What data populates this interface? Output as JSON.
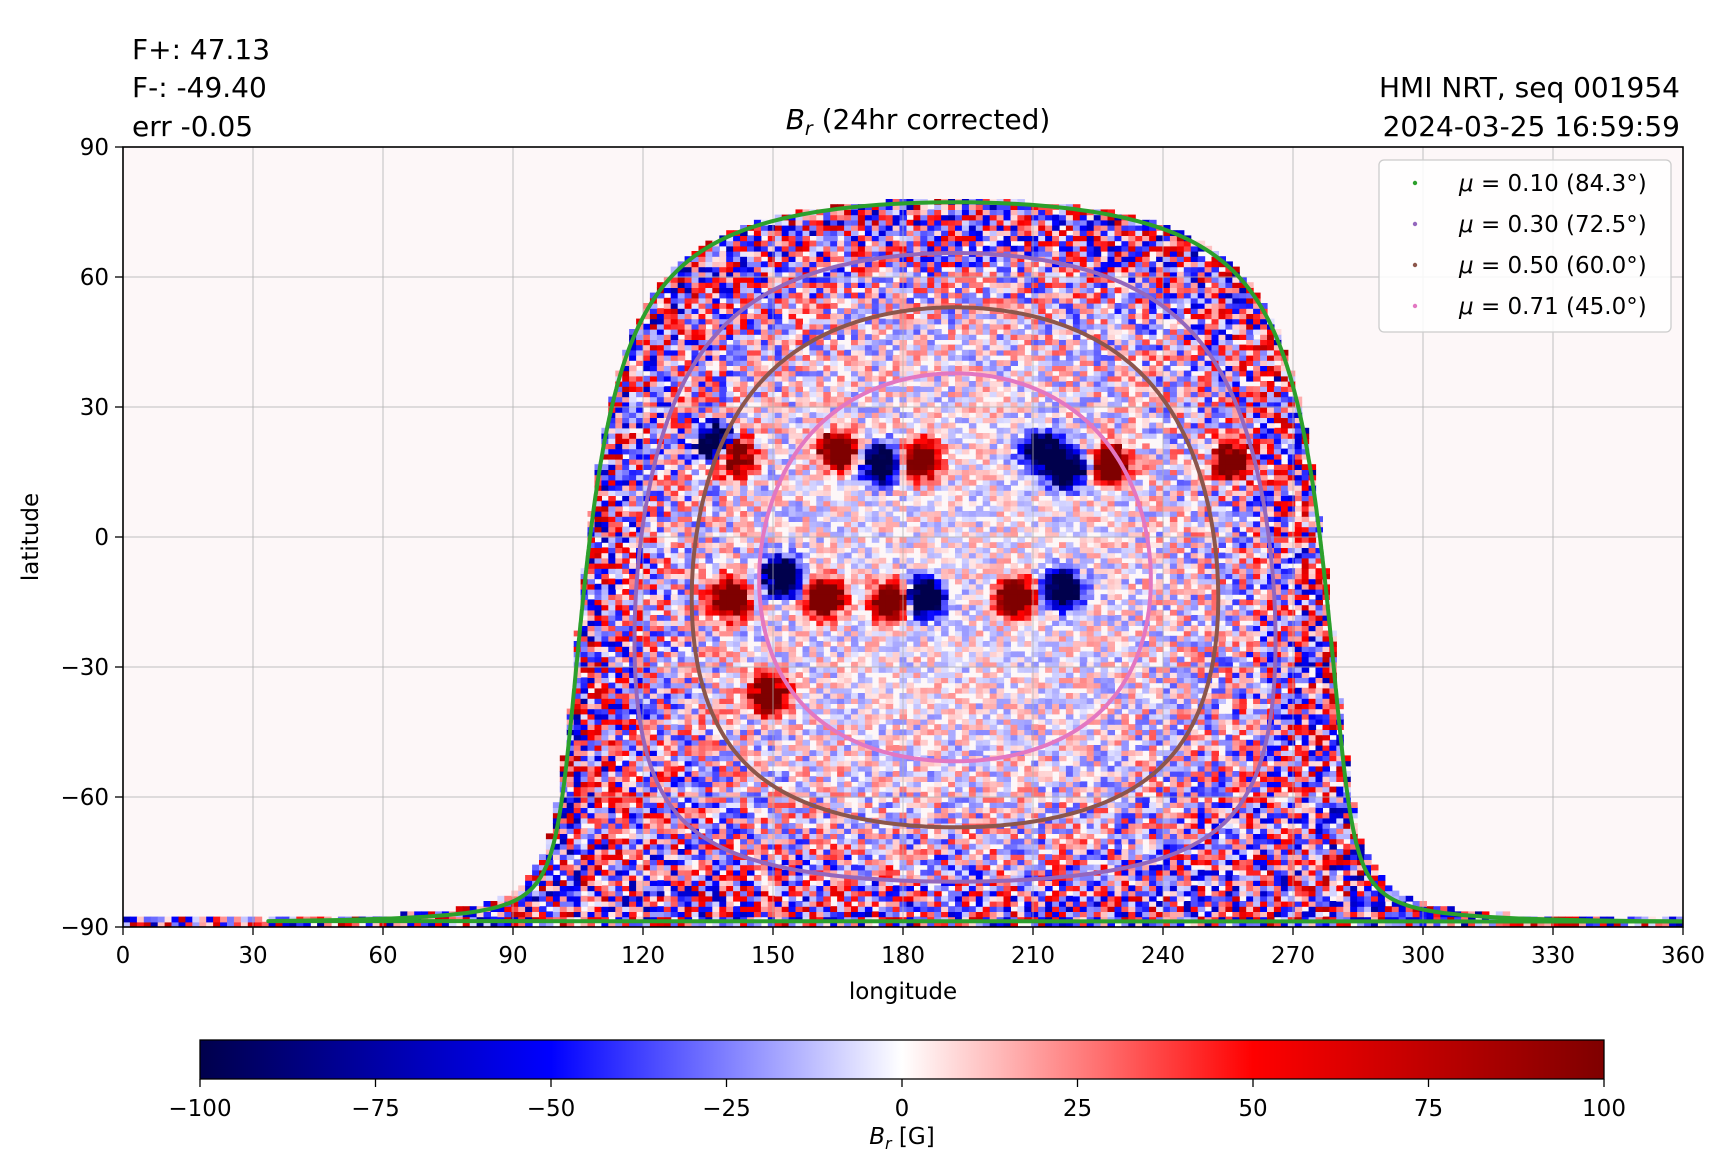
{
  "annotations": {
    "flux_pos": "F+: 47.13",
    "flux_neg": "F-: -49.40",
    "err": "err -0.05",
    "instrument": "HMI NRT, seq 001954",
    "timestamp": "2024-03-25 16:59:59"
  },
  "chart_data": [
    {
      "type": "heatmap",
      "title_main": "B",
      "title_sub": "r",
      "title_rest": " (24hr corrected)",
      "xlabel": "longitude",
      "ylabel": "latitude",
      "xlim": [
        0,
        360
      ],
      "ylim": [
        -90,
        90
      ],
      "xticks": [
        "0",
        "30",
        "60",
        "90",
        "120",
        "150",
        "180",
        "210",
        "240",
        "270",
        "300",
        "330",
        "360"
      ],
      "yticks": [
        "−90",
        "−60",
        "−30",
        "0",
        "30",
        "60",
        "90"
      ],
      "grid": true,
      "disk_center_longitude": 192,
      "disk_center_latitude": -7,
      "legend_position": "top-right",
      "series": [
        {
          "name": "μ = 0.10 (84.3°)",
          "label_math": "μ",
          "label_rest": " = 0.10 (84.3°)",
          "mu": 0.1,
          "color": "#2ca02c"
        },
        {
          "name": "μ = 0.30 (72.5°)",
          "label_math": "μ",
          "label_rest": " = 0.30 (72.5°)",
          "mu": 0.3,
          "color": "#9467bd"
        },
        {
          "name": "μ = 0.50 (60.0°)",
          "label_math": "μ",
          "label_rest": " = 0.50 (60.0°)",
          "mu": 0.5,
          "color": "#8c564b"
        },
        {
          "name": "μ = 0.71 (45.0°)",
          "label_math": "μ",
          "label_rest": " = 0.71 (45.0°)",
          "mu": 0.71,
          "color": "#e377c2"
        }
      ],
      "active_regions": [
        {
          "lon": 137,
          "lat": 22,
          "polarity": "negative"
        },
        {
          "lon": 141,
          "lat": 19,
          "polarity": "positive"
        },
        {
          "lon": 165,
          "lat": 20,
          "polarity": "positive"
        },
        {
          "lon": 175,
          "lat": 17,
          "polarity": "negative"
        },
        {
          "lon": 184,
          "lat": 18,
          "polarity": "positive"
        },
        {
          "lon": 212,
          "lat": 20,
          "polarity": "negative"
        },
        {
          "lon": 218,
          "lat": 16,
          "polarity": "negative"
        },
        {
          "lon": 228,
          "lat": 17,
          "polarity": "positive"
        },
        {
          "lon": 256,
          "lat": 18,
          "polarity": "positive"
        },
        {
          "lon": 140,
          "lat": -14,
          "polarity": "positive"
        },
        {
          "lon": 152,
          "lat": -9,
          "polarity": "negative"
        },
        {
          "lon": 162,
          "lat": -14,
          "polarity": "positive"
        },
        {
          "lon": 177,
          "lat": -15,
          "polarity": "positive"
        },
        {
          "lon": 185,
          "lat": -14,
          "polarity": "negative"
        },
        {
          "lon": 206,
          "lat": -14,
          "polarity": "positive"
        },
        {
          "lon": 217,
          "lat": -12,
          "polarity": "negative"
        },
        {
          "lon": 149,
          "lat": -36,
          "polarity": "positive"
        }
      ]
    },
    {
      "type": "colorbar",
      "label_main": "B",
      "label_sub": "r",
      "label_rest": " [G]",
      "colormap": "seismic",
      "range": [
        -100,
        100
      ],
      "ticks": [
        "−100",
        "−75",
        "−50",
        "−25",
        "0",
        "25",
        "50",
        "75",
        "100"
      ],
      "stops": [
        "#00004c",
        "#0000ff",
        "#ffffff",
        "#ff0000",
        "#7f0000"
      ]
    }
  ]
}
